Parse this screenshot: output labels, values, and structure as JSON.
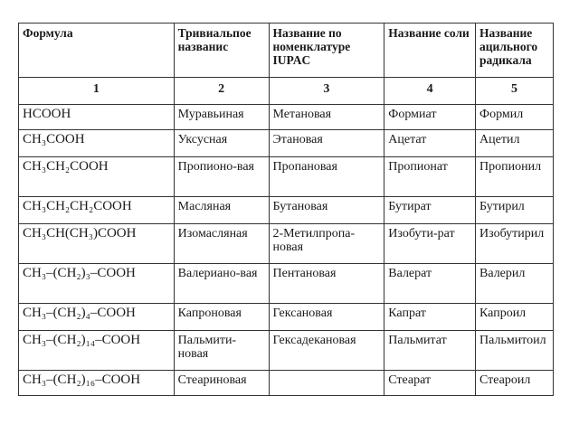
{
  "headers": [
    "Формула",
    "Тривиальпое названис",
    "Название по номенклатуре IUPAC",
    "Название соли",
    "Название ацильного радикала"
  ],
  "column_numbers": [
    "1",
    "2",
    "3",
    "4",
    "5"
  ],
  "rows": [
    [
      "HCOOH",
      "Муравьиная",
      "Метановая",
      "Формиат",
      "Формил"
    ],
    [
      "CH₃COOH",
      "Уксусная",
      "Этановая",
      "Ацетат",
      "Ацетил"
    ],
    [
      "CH₃CH₂COOH",
      "Пропионо-вая",
      "Пропановая",
      "Пропионат",
      "Пропионил"
    ],
    [
      "CH₃CH₂CH₂COOH",
      "Масляная",
      "Бутановая",
      "Бутират",
      "Бутирил"
    ],
    [
      "CH₃CH(CH₃)COOH",
      "Изомасляная",
      "2-Метилпропа-новая",
      "Изобути-рат",
      "Изобутирил"
    ],
    [
      "CH₃–(CH₂)₃–COOH",
      "Валериано-вая",
      "Пентановая",
      "Валерат",
      "Валерил"
    ],
    [
      "CH₃–(CH₂)₄–COOH",
      "Капроновая",
      "Гексановая",
      "Капрат",
      "Капроил"
    ],
    [
      "CH₃–(CH₂)₁₄–COOH",
      "Пальмити-новая",
      "Гексадекановая",
      "Пальмитат",
      "Пальмитоил"
    ],
    [
      "CH₃–(CH₂)₁₆–COOH",
      "Стеариновая",
      "",
      "Стеарат",
      "Стеароил"
    ]
  ]
}
